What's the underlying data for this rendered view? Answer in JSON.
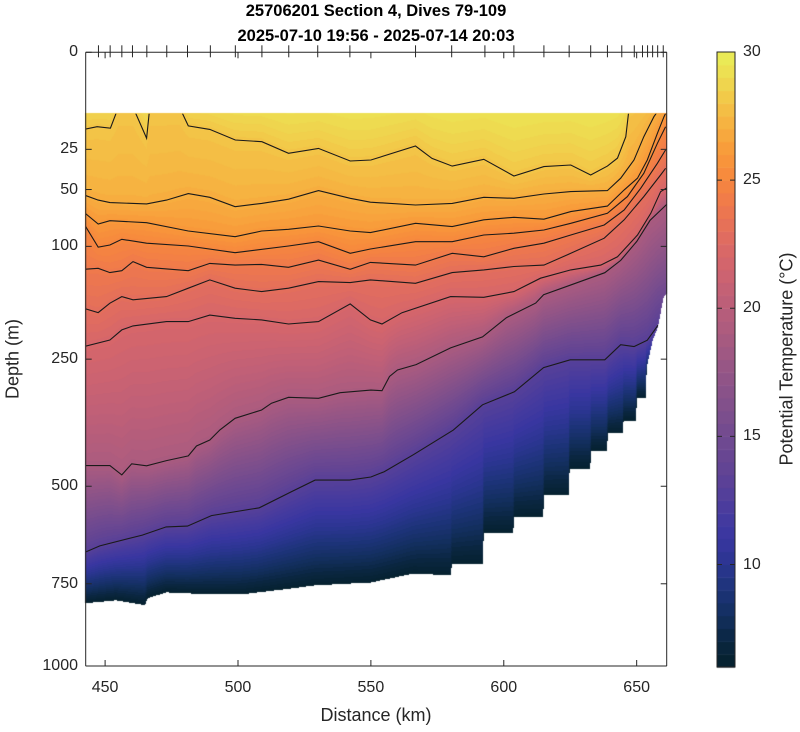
{
  "chart_data": {
    "type": "heatmap",
    "subtype": "filled contour section",
    "title": [
      "25706201 Section 4, Dives 79-109",
      "2025-07-10 19:56 - 2025-07-14 20:03"
    ],
    "xlabel": "Distance (km)",
    "ylabel": "Depth (m)",
    "xlim": [
      442.7,
      661.3
    ],
    "ylim": [
      0,
      1000
    ],
    "yscale": "sqrt",
    "yreversed": true,
    "xticks": [
      450,
      500,
      550,
      600,
      650
    ],
    "xtick_labels": [
      "450",
      "500",
      "550",
      "600",
      "650"
    ],
    "yticks": [
      0,
      25,
      50,
      100,
      250,
      500,
      750,
      1000
    ],
    "ytick_labels": [
      "0",
      "25",
      "50",
      "100",
      "250",
      "500",
      "750",
      "1000"
    ],
    "colorbar": {
      "label": "Potential Temperature (°C)",
      "range": [
        6,
        30
      ],
      "ticks": [
        10,
        15,
        20,
        25,
        30
      ],
      "tick_labels": [
        "10",
        "15",
        "20",
        "25",
        "30"
      ]
    },
    "colormap": [
      [
        6,
        "#04202c"
      ],
      [
        7,
        "#0a2640"
      ],
      [
        8,
        "#132f5e"
      ],
      [
        9,
        "#1c3378"
      ],
      [
        10,
        "#2a3590"
      ],
      [
        11,
        "#3836a0"
      ],
      [
        12,
        "#473b9e"
      ],
      [
        13,
        "#574098"
      ],
      [
        14,
        "#654593"
      ],
      [
        15,
        "#714a90"
      ],
      [
        16,
        "#7e4f8c"
      ],
      [
        17,
        "#8c5388"
      ],
      [
        18,
        "#9b5784"
      ],
      [
        19,
        "#aa5b7f"
      ],
      [
        20,
        "#b95e7a"
      ],
      [
        21,
        "#c86273"
      ],
      [
        22,
        "#d6666a"
      ],
      [
        23,
        "#e36e5c"
      ],
      [
        24,
        "#ef794c"
      ],
      [
        25,
        "#f6863e"
      ],
      [
        26,
        "#f8983a"
      ],
      [
        27,
        "#f7ad3f"
      ],
      [
        28,
        "#f3c447"
      ],
      [
        29,
        "#eedb50"
      ],
      [
        30,
        "#e9ef58"
      ]
    ],
    "data_top_depth": 10,
    "surface_temp": 29.8,
    "bottom_temp": 6.2,
    "contour_levels": [
      28,
      27,
      26,
      25,
      24,
      23,
      22,
      19,
      13
    ],
    "isotherms": [
      {
        "level": 28,
        "points": [
          [
            442,
            15.8
          ],
          [
            447,
            14.7
          ],
          [
            452,
            15.3
          ],
          [
            455,
            8
          ],
          [
            460.5,
            8
          ],
          [
            465.6,
            19.6
          ],
          [
            466.8,
            8
          ],
          [
            478,
            8
          ],
          [
            481.3,
            14.4
          ],
          [
            489.4,
            15.8
          ],
          [
            499,
            20.4
          ],
          [
            509,
            21.2
          ],
          [
            519,
            27.1
          ],
          [
            530.3,
            24.5
          ],
          [
            542.2,
            31.4
          ],
          [
            550,
            30.8
          ],
          [
            566.8,
            23.3
          ],
          [
            573,
            29.9
          ],
          [
            580.6,
            34.4
          ],
          [
            592.5,
            30.4
          ],
          [
            603.8,
            40.6
          ],
          [
            615.1,
            34.7
          ],
          [
            625.2,
            33.7
          ],
          [
            632.7,
            40
          ],
          [
            639,
            34.4
          ],
          [
            642.8,
            29.7
          ],
          [
            645.9,
            18.9
          ],
          [
            647.2,
            8
          ],
          [
            662,
            3
          ]
        ]
      },
      {
        "level": 27,
        "points": [
          [
            442,
            54
          ],
          [
            447.4,
            58
          ],
          [
            451.8,
            60
          ],
          [
            465.6,
            61
          ],
          [
            473.1,
            58
          ],
          [
            481.3,
            53
          ],
          [
            489.4,
            55.8
          ],
          [
            498.9,
            63.3
          ],
          [
            508.9,
            60.6
          ],
          [
            519,
            57.3
          ],
          [
            530.3,
            50.8
          ],
          [
            542.2,
            56.6
          ],
          [
            549.8,
            59.7
          ],
          [
            566.8,
            61.9
          ],
          [
            580.6,
            60.6
          ],
          [
            592.5,
            55.8
          ],
          [
            603.8,
            56.6
          ],
          [
            615.1,
            53.3
          ],
          [
            625.2,
            51.5
          ],
          [
            639,
            50.8
          ],
          [
            644,
            42.1
          ],
          [
            649,
            30.8
          ],
          [
            652.7,
            18.9
          ],
          [
            656.5,
            11
          ],
          [
            659,
            8
          ],
          [
            662,
            6
          ]
        ]
      },
      {
        "level": 26,
        "points": [
          [
            442,
            67.9
          ],
          [
            447.4,
            78.3
          ],
          [
            451.8,
            75.3
          ],
          [
            465.6,
            77.1
          ],
          [
            481.3,
            84.8
          ],
          [
            498.9,
            90.3
          ],
          [
            508.9,
            84.8
          ],
          [
            519,
            83.2
          ],
          [
            530.3,
            80.1
          ],
          [
            542.2,
            84.8
          ],
          [
            549.8,
            86.3
          ],
          [
            566.8,
            77.6
          ],
          [
            580.6,
            80.7
          ],
          [
            592.5,
            74.5
          ],
          [
            603.8,
            72.3
          ],
          [
            615.1,
            74
          ],
          [
            625.2,
            67.4
          ],
          [
            639,
            62.8
          ],
          [
            645.3,
            50.3
          ],
          [
            650.3,
            42.1
          ],
          [
            654,
            30.8
          ],
          [
            657.8,
            17.4
          ],
          [
            660.3,
            11
          ],
          [
            662,
            8
          ]
        ]
      },
      {
        "level": 25,
        "points": [
          [
            442,
            77.8
          ],
          [
            447.4,
            100.9
          ],
          [
            451.8,
            98.6
          ],
          [
            456.3,
            92.8
          ],
          [
            465.6,
            96.8
          ],
          [
            481.3,
            99.6
          ],
          [
            498.9,
            106.6
          ],
          [
            519,
            99.6
          ],
          [
            530.3,
            95.2
          ],
          [
            542.2,
            107.3
          ],
          [
            549.8,
            102.7
          ],
          [
            566.8,
            95.2
          ],
          [
            580.6,
            95.2
          ],
          [
            592.5,
            88.6
          ],
          [
            603.8,
            86.9
          ],
          [
            615.1,
            83.8
          ],
          [
            625.2,
            77.6
          ],
          [
            639,
            68.8
          ],
          [
            646.5,
            55.3
          ],
          [
            652.7,
            38.9
          ],
          [
            657.8,
            22
          ],
          [
            660.9,
            14.7
          ]
        ]
      },
      {
        "level": 24,
        "points": [
          [
            442,
            125
          ],
          [
            447.4,
            123.9
          ],
          [
            451.8,
            128.9
          ],
          [
            456.3,
            126.7
          ],
          [
            460.5,
            116.3
          ],
          [
            465.6,
            122.7
          ],
          [
            481.3,
            126.7
          ],
          [
            489.4,
            118.3
          ],
          [
            498.9,
            120.2
          ],
          [
            508.9,
            119.4
          ],
          [
            519,
            122.7
          ],
          [
            530.3,
            114.6
          ],
          [
            542.2,
            125
          ],
          [
            549.8,
            117.2
          ],
          [
            566.8,
            120.2
          ],
          [
            580.6,
            107.3
          ],
          [
            592.5,
            111
          ],
          [
            603.8,
            102
          ],
          [
            615.1,
            96.8
          ],
          [
            625.2,
            88.6
          ],
          [
            637.8,
            79.2
          ],
          [
            645.3,
            66
          ],
          [
            651.5,
            49.1
          ],
          [
            657.8,
            32.7
          ],
          [
            660.9,
            25.3
          ]
        ]
      },
      {
        "level": 23,
        "points": [
          [
            442,
            174
          ],
          [
            447.4,
            179.9
          ],
          [
            451.8,
            167.2
          ],
          [
            456.3,
            158.5
          ],
          [
            460.5,
            162.7
          ],
          [
            473.1,
            158.5
          ],
          [
            481.3,
            147.8
          ],
          [
            489.4,
            137.6
          ],
          [
            498.9,
            147.8
          ],
          [
            508.9,
            152.1
          ],
          [
            519,
            147.8
          ],
          [
            530.3,
            139.6
          ],
          [
            542.2,
            140.8
          ],
          [
            549.8,
            137.6
          ],
          [
            566.8,
            141.7
          ],
          [
            580.6,
            128.9
          ],
          [
            592.5,
            125.7
          ],
          [
            603.8,
            121.8
          ],
          [
            615.1,
            120.2
          ],
          [
            625.2,
            107.3
          ],
          [
            637.8,
            91.8
          ],
          [
            645.3,
            74.5
          ],
          [
            652.7,
            55.3
          ],
          [
            659,
            40
          ],
          [
            660.9,
            35.7
          ]
        ]
      },
      {
        "level": 22,
        "points": [
          [
            442,
            230
          ],
          [
            451.8,
            219.7
          ],
          [
            456.3,
            204.6
          ],
          [
            460.5,
            198.7
          ],
          [
            473.1,
            192.6
          ],
          [
            481.3,
            192.6
          ],
          [
            489.4,
            183.4
          ],
          [
            498.9,
            187.9
          ],
          [
            508.9,
            190.2
          ],
          [
            519,
            196
          ],
          [
            530.3,
            192.6
          ],
          [
            542.2,
            168.1
          ],
          [
            549.8,
            190.2
          ],
          [
            554.2,
            196
          ],
          [
            561.7,
            180
          ],
          [
            580,
            158.5
          ],
          [
            592.5,
            159.4
          ],
          [
            603.8,
            152.1
          ],
          [
            613.8,
            135.5
          ],
          [
            625.2,
            125.7
          ],
          [
            636.5,
            120.2
          ],
          [
            642.8,
            111
          ],
          [
            650.3,
            88.6
          ],
          [
            655.3,
            68.8
          ],
          [
            659,
            51.6
          ],
          [
            662,
            48
          ]
        ]
      },
      {
        "level": 19,
        "points": [
          [
            442,
            453.6
          ],
          [
            451.8,
            453.6
          ],
          [
            456.3,
            474.2
          ],
          [
            460,
            449.7
          ],
          [
            465.6,
            454
          ],
          [
            473.1,
            442.6
          ],
          [
            481.3,
            432.5
          ],
          [
            484.4,
            411.5
          ],
          [
            489.4,
            399
          ],
          [
            493.2,
            378.6
          ],
          [
            498.9,
            355.7
          ],
          [
            508.9,
            339.7
          ],
          [
            512.6,
            327
          ],
          [
            519,
            316
          ],
          [
            530.3,
            317.8
          ],
          [
            538.4,
            307.6
          ],
          [
            550,
            303
          ],
          [
            554.2,
            304
          ],
          [
            557,
            279
          ],
          [
            560,
            268
          ],
          [
            567,
            259
          ],
          [
            580,
            232
          ],
          [
            592,
            215
          ],
          [
            601,
            187
          ],
          [
            612,
            167
          ],
          [
            615,
            156
          ],
          [
            625,
            144
          ],
          [
            638,
            129
          ],
          [
            644,
            115
          ],
          [
            650,
            95
          ],
          [
            655,
            75
          ],
          [
            662,
            60
          ]
        ]
      },
      {
        "level": 13,
        "points": [
          [
            442,
            665
          ],
          [
            448,
            647
          ],
          [
            464,
            619
          ],
          [
            473,
            598
          ],
          [
            481,
            596
          ],
          [
            490,
            570
          ],
          [
            508,
            551
          ],
          [
            520,
            513
          ],
          [
            529,
            486
          ],
          [
            542,
            486
          ],
          [
            550,
            479
          ],
          [
            555,
            467
          ],
          [
            566,
            430
          ],
          [
            581,
            379
          ],
          [
            592,
            330
          ],
          [
            604,
            306
          ],
          [
            615,
            264
          ],
          [
            625,
            251
          ],
          [
            638,
            251
          ],
          [
            644,
            227
          ],
          [
            649,
            230
          ],
          [
            654,
            220
          ],
          [
            658,
            198
          ],
          [
            662,
            190
          ]
        ]
      }
    ],
    "bottom_depth": [
      [
        442,
        805
      ],
      [
        454,
        796
      ],
      [
        465,
        810
      ],
      [
        466,
        790
      ],
      [
        473,
        773
      ],
      [
        490,
        779
      ],
      [
        501,
        779
      ],
      [
        520,
        762
      ],
      [
        529,
        753
      ],
      [
        550,
        745
      ],
      [
        566,
        720
      ],
      [
        580,
        725
      ],
      [
        580.5,
        693
      ],
      [
        592,
        693
      ],
      [
        592.5,
        611
      ],
      [
        603.5,
        611
      ],
      [
        604,
        572
      ],
      [
        614.8,
        572
      ],
      [
        615.2,
        520
      ],
      [
        624.4,
        520
      ],
      [
        624.8,
        459
      ],
      [
        632.5,
        459
      ],
      [
        632.9,
        420
      ],
      [
        638.8,
        420
      ],
      [
        639.2,
        384
      ],
      [
        644.7,
        384
      ],
      [
        645.1,
        359
      ],
      [
        649.7,
        359
      ],
      [
        650.1,
        317
      ],
      [
        653.4,
        317
      ],
      [
        653.8,
        262
      ],
      [
        656,
        220
      ],
      [
        658,
        200
      ],
      [
        660,
        160
      ],
      [
        662,
        150
      ]
    ],
    "dive_positions_km": [
      447.5,
      451.9,
      456.3,
      460.3,
      465.7,
      473.2,
      481.0,
      489.6,
      499.0,
      509.0,
      519.1,
      530.0,
      542.1,
      566.8,
      580.4,
      592.9,
      603.8,
      615.1,
      624.6,
      632.7,
      639.0,
      644.4,
      649.1,
      652.2,
      654.1,
      656.0,
      657.9,
      660.0
    ]
  }
}
